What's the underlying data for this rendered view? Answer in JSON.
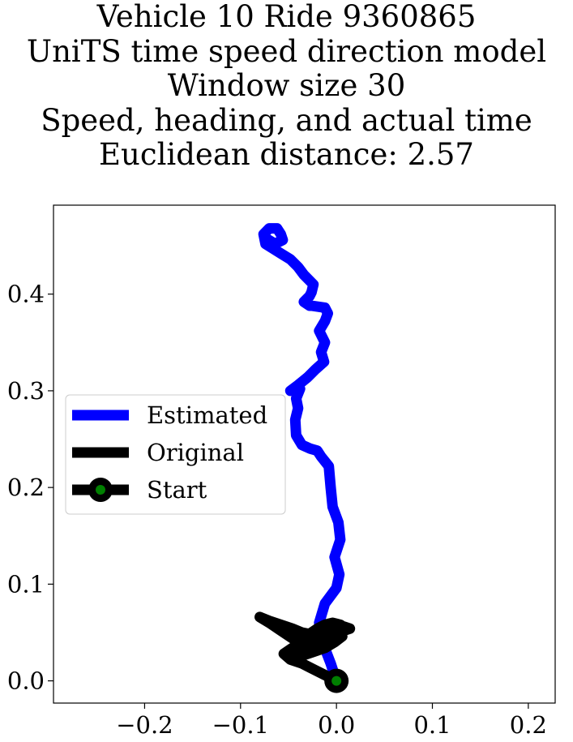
{
  "title_lines": [
    "Vehicle 10 Ride 9360865",
    "UniTS time speed direction model",
    "Window size 30",
    "Speed, heading, and actual time",
    "Euclidean distance: 2.57"
  ],
  "chart_data": {
    "type": "line",
    "title": "Vehicle 10 Ride 9360865 UniTS time speed direction model Window size 30 Speed, heading, and actual time Euclidean distance: 2.57",
    "xlabel": "",
    "ylabel": "",
    "xlim": [
      -0.295,
      0.228
    ],
    "ylim": [
      -0.023,
      0.492
    ],
    "xticks": [
      -0.2,
      -0.1,
      0.0,
      0.1,
      0.2
    ],
    "xtick_labels": [
      "−0.2",
      "−0.1",
      "0.0",
      "0.1",
      "0.2"
    ],
    "yticks": [
      0.0,
      0.1,
      0.2,
      0.3,
      0.4
    ],
    "ytick_labels": [
      "0.0",
      "0.1",
      "0.2",
      "0.3",
      "0.4"
    ],
    "grid": false,
    "legend_position": "center-left",
    "legend": [
      "Estimated",
      "Original",
      "Start"
    ],
    "series": [
      {
        "name": "Estimated",
        "color": "#0000ff",
        "x": [
          0.0,
          -0.006,
          -0.013,
          -0.018,
          -0.012,
          0.0,
          0.003,
          -0.002,
          0.004,
          0.002,
          -0.004,
          -0.006,
          -0.008,
          -0.016,
          -0.02,
          -0.027,
          -0.036,
          -0.042,
          -0.043,
          -0.04,
          -0.042,
          -0.038,
          -0.048,
          -0.04,
          -0.03,
          -0.022,
          -0.013,
          -0.016,
          -0.012,
          -0.018,
          -0.012,
          -0.009,
          -0.012,
          -0.026,
          -0.028,
          -0.034,
          -0.028,
          -0.026,
          -0.024,
          -0.034,
          -0.04,
          -0.048,
          -0.058,
          -0.074,
          -0.076,
          -0.07,
          -0.062,
          -0.058,
          -0.056,
          -0.064,
          -0.074
        ],
        "y": [
          0.0,
          0.018,
          0.036,
          0.06,
          0.08,
          0.096,
          0.11,
          0.128,
          0.146,
          0.164,
          0.18,
          0.2,
          0.222,
          0.232,
          0.238,
          0.24,
          0.244,
          0.254,
          0.27,
          0.282,
          0.292,
          0.302,
          0.3,
          0.306,
          0.314,
          0.322,
          0.33,
          0.34,
          0.35,
          0.362,
          0.372,
          0.38,
          0.386,
          0.388,
          0.388,
          0.392,
          0.398,
          0.402,
          0.41,
          0.42,
          0.428,
          0.436,
          0.442,
          0.452,
          0.462,
          0.468,
          0.468,
          0.462,
          0.456,
          0.452,
          0.458
        ]
      },
      {
        "name": "Original",
        "color": "#000000",
        "x": [
          0.0,
          -0.012,
          -0.024,
          -0.036,
          -0.048,
          -0.055,
          -0.046,
          -0.034,
          -0.022,
          -0.01,
          0.002,
          0.014,
          0.008,
          -0.004,
          -0.016,
          -0.026,
          -0.036,
          -0.046,
          -0.058,
          -0.07,
          -0.08,
          -0.07,
          -0.058,
          -0.046,
          -0.036,
          -0.03,
          -0.026,
          -0.02,
          -0.012,
          -0.004,
          0.004,
          0.01,
          -0.002,
          -0.014,
          -0.028,
          -0.04,
          -0.044,
          -0.036,
          -0.024,
          -0.012,
          -0.002,
          0.006,
          0.002,
          -0.01,
          -0.022,
          -0.03
        ],
        "y": [
          0.0,
          0.006,
          0.012,
          0.018,
          0.022,
          0.028,
          0.034,
          0.038,
          0.042,
          0.046,
          0.05,
          0.054,
          0.056,
          0.054,
          0.05,
          0.048,
          0.05,
          0.054,
          0.058,
          0.062,
          0.066,
          0.06,
          0.052,
          0.044,
          0.038,
          0.042,
          0.05,
          0.054,
          0.058,
          0.06,
          0.058,
          0.054,
          0.048,
          0.042,
          0.038,
          0.034,
          0.028,
          0.026,
          0.03,
          0.034,
          0.04,
          0.046,
          0.052,
          0.054,
          0.05,
          0.046
        ]
      },
      {
        "name": "Start",
        "color": "#000000",
        "marker_color": "#008000",
        "x": [
          0.0
        ],
        "y": [
          0.0
        ]
      }
    ]
  }
}
